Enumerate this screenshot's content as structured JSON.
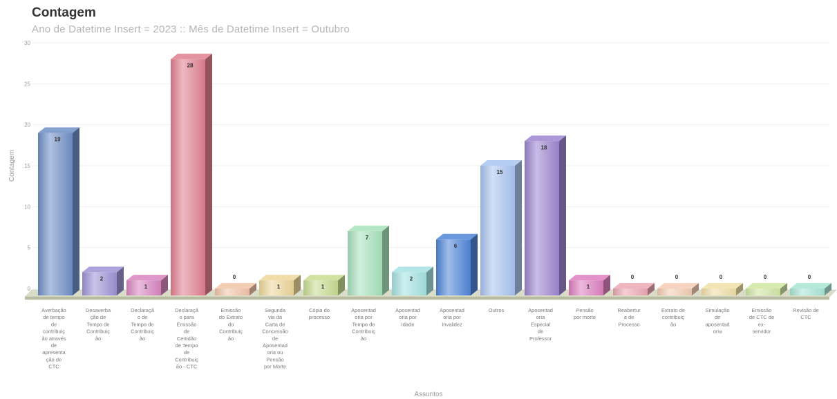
{
  "chart_data": {
    "type": "bar",
    "title": "Contagem",
    "subtitle": "Ano de Datetime Insert = 2023 :: Mês de Datetime Insert = Outubro",
    "xlabel": "Assuntos",
    "ylabel": "Contagem",
    "ylim": [
      0,
      30
    ],
    "yticks": [
      "0",
      "5",
      "10",
      "15",
      "20",
      "25",
      "30"
    ],
    "grid": true,
    "categories": [
      "Averbação de tempo de contribuição através de apresentação de CTC",
      "Desaverbação de Tempo de Contribuição",
      "Declaração de Tempo de Contribuição",
      "Declaração para Emissão de Certidão de Tempo de Contribuição - CTC",
      "Emissão do Extrato do Contribuição",
      "Segunda via da Carta de Concessão de Aposentadoria ou Pensão por Morte",
      "Cópia do processo",
      "Aposentadoria por Tempo de Contribuição",
      "Aposentadoria por Idade",
      "Aposentadoria por Invalidez",
      "Outros",
      "Aposentadoria Especial de Professor",
      "Pensão por morte",
      "Reabertura de Processo",
      "Extrato de contribuição",
      "Simulação de aposentadoria",
      "Emissão de CTC de ex-servidor",
      "Revisão de CTC"
    ],
    "category_label_lines": [
      [
        "Averbação",
        "de tempo",
        "de",
        "contribuiç",
        "ão através",
        "de",
        "apresenta",
        "ção de",
        "CTC"
      ],
      [
        "Desaverba",
        "ção de",
        "Tempo de",
        "Contribuiç",
        "ão"
      ],
      [
        "Declaraçã",
        "o de",
        "Tempo de",
        "Contribuiç",
        "ão"
      ],
      [
        "Declaraçã",
        "o para",
        "Emissão",
        "de",
        "Certidão",
        "de Tempo",
        "de",
        "Contribuiç",
        "ão - CTC"
      ],
      [
        "Emissão",
        "do Extrato",
        "do",
        "Contribuiç",
        "ão"
      ],
      [
        "Segunda",
        "via da",
        "Carta de",
        "Concessão",
        "de",
        "Aposentad",
        "oria ou",
        "Pensão",
        "por Morte"
      ],
      [
        "Cópia do",
        "processo"
      ],
      [
        "Aposentad",
        "oria por",
        "Tempo de",
        "Contribuiç",
        "ão"
      ],
      [
        "Aposentad",
        "oria por",
        "Idade"
      ],
      [
        "Aposentad",
        "oria por",
        "Invalidez"
      ],
      [
        "Outros"
      ],
      [
        "Aposentad",
        "oria",
        "Especial",
        "de",
        "Professor"
      ],
      [
        "Pensão",
        "por morte"
      ],
      [
        "Reabertur",
        "a de",
        "Processo"
      ],
      [
        "Extrato de",
        "contribuiç",
        "ão"
      ],
      [
        "Simulação",
        "de",
        "aposentad",
        "oria"
      ],
      [
        "Emissão",
        "de CTC de",
        "ex-",
        "servidor"
      ],
      [
        "Revisão de",
        "CTC"
      ]
    ],
    "values": [
      19,
      2,
      1,
      28,
      0,
      1,
      1,
      7,
      2,
      6,
      15,
      18,
      1,
      0,
      0,
      0,
      0,
      0
    ],
    "colors": [
      "#6f8fc7",
      "#9d93d6",
      "#d985c0",
      "#e07f8f",
      "#f2c4a8",
      "#eed79a",
      "#c8dc92",
      "#a8e2bc",
      "#a6e2e2",
      "#4f86d8",
      "#a9c4f0",
      "#9d86d0",
      "#dd7fbf",
      "#eca8b2",
      "#f4ccb4",
      "#f1dfa6",
      "#d0e7a3",
      "#a8e6d4"
    ]
  }
}
